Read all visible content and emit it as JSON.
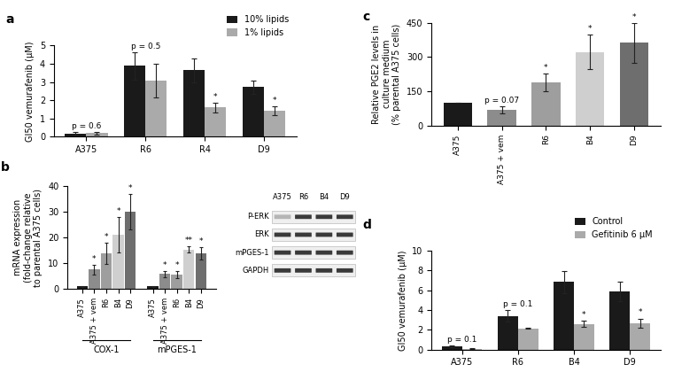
{
  "chart_data": [
    {
      "type": "bar",
      "title": "a",
      "categories": [
        "A375",
        "R6",
        "R4",
        "D9"
      ],
      "series": [
        {
          "name": "10% lipids",
          "color": "#1a1a1a",
          "values": [
            0.15,
            3.9,
            3.65,
            2.72
          ],
          "errors": [
            0.1,
            0.75,
            0.65,
            0.35
          ]
        },
        {
          "name": "1% lipids",
          "color": "#aaaaaa",
          "values": [
            0.2,
            3.08,
            1.6,
            1.42
          ],
          "errors": [
            0.08,
            0.9,
            0.25,
            0.25
          ]
        }
      ],
      "y_label": "GI50 vemurafenib (μM)",
      "ylim": [
        0,
        5
      ],
      "yticks": [
        0,
        1,
        2,
        3,
        4,
        5
      ],
      "legend": "upper right",
      "annotations": [
        {
          "text": "p = 0.6",
          "category": "A375"
        },
        {
          "text": "p = 0.5",
          "category": "R6"
        },
        {
          "text": "*",
          "category": "R4",
          "series": "1% lipids"
        },
        {
          "text": "*",
          "category": "D9",
          "series": "1% lipids"
        }
      ]
    },
    {
      "type": "bar",
      "title": "b",
      "categories": [
        "COX-1",
        "mPGES-1"
      ],
      "series": [
        {
          "name": "A375",
          "color": "#1a1a1a",
          "values": [
            1,
            1
          ],
          "errors": [
            0.2,
            0.2
          ]
        },
        {
          "name": "A375 + vem",
          "color": "#8c8c8c",
          "values": [
            7.5,
            5.8
          ],
          "errors": [
            1.8,
            1.2
          ]
        },
        {
          "name": "R6",
          "color": "#9e9e9e",
          "values": [
            13.8,
            5.5
          ],
          "errors": [
            4,
            1.3
          ]
        },
        {
          "name": "B4",
          "color": "#cfcfcf",
          "values": [
            21,
            15.3
          ],
          "errors": [
            7,
            1.2
          ]
        },
        {
          "name": "D9",
          "color": "#6e6e6e",
          "values": [
            30,
            13.8
          ],
          "errors": [
            7,
            2.5
          ]
        }
      ],
      "y_label": "mRNA expression\n(fold-change relative\nto parental A375 cells)",
      "ylim": [
        0,
        40
      ],
      "yticks": [
        0,
        10,
        20,
        30,
        40
      ],
      "annotations": [
        {
          "text": "*",
          "category": "COX-1",
          "series": "A375 + vem"
        },
        {
          "text": "*",
          "category": "COX-1",
          "series": "R6"
        },
        {
          "text": "*",
          "category": "COX-1",
          "series": "B4"
        },
        {
          "text": "*",
          "category": "COX-1",
          "series": "D9"
        },
        {
          "text": "*",
          "category": "mPGES-1",
          "series": "A375 + vem"
        },
        {
          "text": "*",
          "category": "mPGES-1",
          "series": "R6"
        },
        {
          "text": "**",
          "category": "mPGES-1",
          "series": "B4"
        },
        {
          "text": "*",
          "category": "mPGES-1",
          "series": "D9"
        }
      ],
      "blot": {
        "rows": [
          "P-ERK",
          "ERK",
          "mPGES-1",
          "GAPDH"
        ],
        "columns": [
          "A375",
          "R6",
          "B4",
          "D9"
        ]
      }
    },
    {
      "type": "bar",
      "title": "c",
      "categories": [
        "A375",
        "A375 + vem",
        "R6",
        "B4",
        "D9"
      ],
      "values": [
        100,
        68,
        188,
        322,
        362
      ],
      "errors": [
        0,
        15,
        38,
        75,
        88
      ],
      "colors": [
        "#1a1a1a",
        "#8c8c8c",
        "#9e9e9e",
        "#cfcfcf",
        "#6e6e6e"
      ],
      "y_label": "Relative PGE2 levels in\nculture medium\n(% parental A375 cells)",
      "ylim": [
        0,
        450
      ],
      "yticks": [
        0,
        150,
        300,
        450
      ],
      "annotations": [
        {
          "text": "p = 0.07",
          "category": "A375 + vem"
        },
        {
          "text": "*",
          "category": "R6"
        },
        {
          "text": "*",
          "category": "B4"
        },
        {
          "text": "*",
          "category": "D9"
        }
      ]
    },
    {
      "type": "bar",
      "title": "d",
      "categories": [
        "A375",
        "R6",
        "B4",
        "D9"
      ],
      "series": [
        {
          "name": "Control",
          "color": "#1a1a1a",
          "values": [
            0.3,
            3.4,
            6.85,
            5.9
          ],
          "errors": [
            0.1,
            0.6,
            1.1,
            1.0
          ]
        },
        {
          "name": "Gefitinib 6 μM",
          "color": "#aaaaaa",
          "values": [
            0.1,
            2.15,
            2.6,
            2.7
          ],
          "errors": [
            0.05,
            0.05,
            0.3,
            0.45
          ]
        }
      ],
      "y_label": "GI50 vemurafenib (μM)",
      "ylim": [
        0,
        10
      ],
      "yticks": [
        0,
        2,
        4,
        6,
        8,
        10
      ],
      "legend": "upper right",
      "annotations": [
        {
          "text": "p = 0.1",
          "category": "A375"
        },
        {
          "text": "p = 0.1",
          "category": "R6"
        },
        {
          "text": "*",
          "category": "B4",
          "series": "Gefitinib 6 μM"
        },
        {
          "text": "*",
          "category": "D9",
          "series": "Gefitinib 6 μM"
        }
      ]
    }
  ]
}
